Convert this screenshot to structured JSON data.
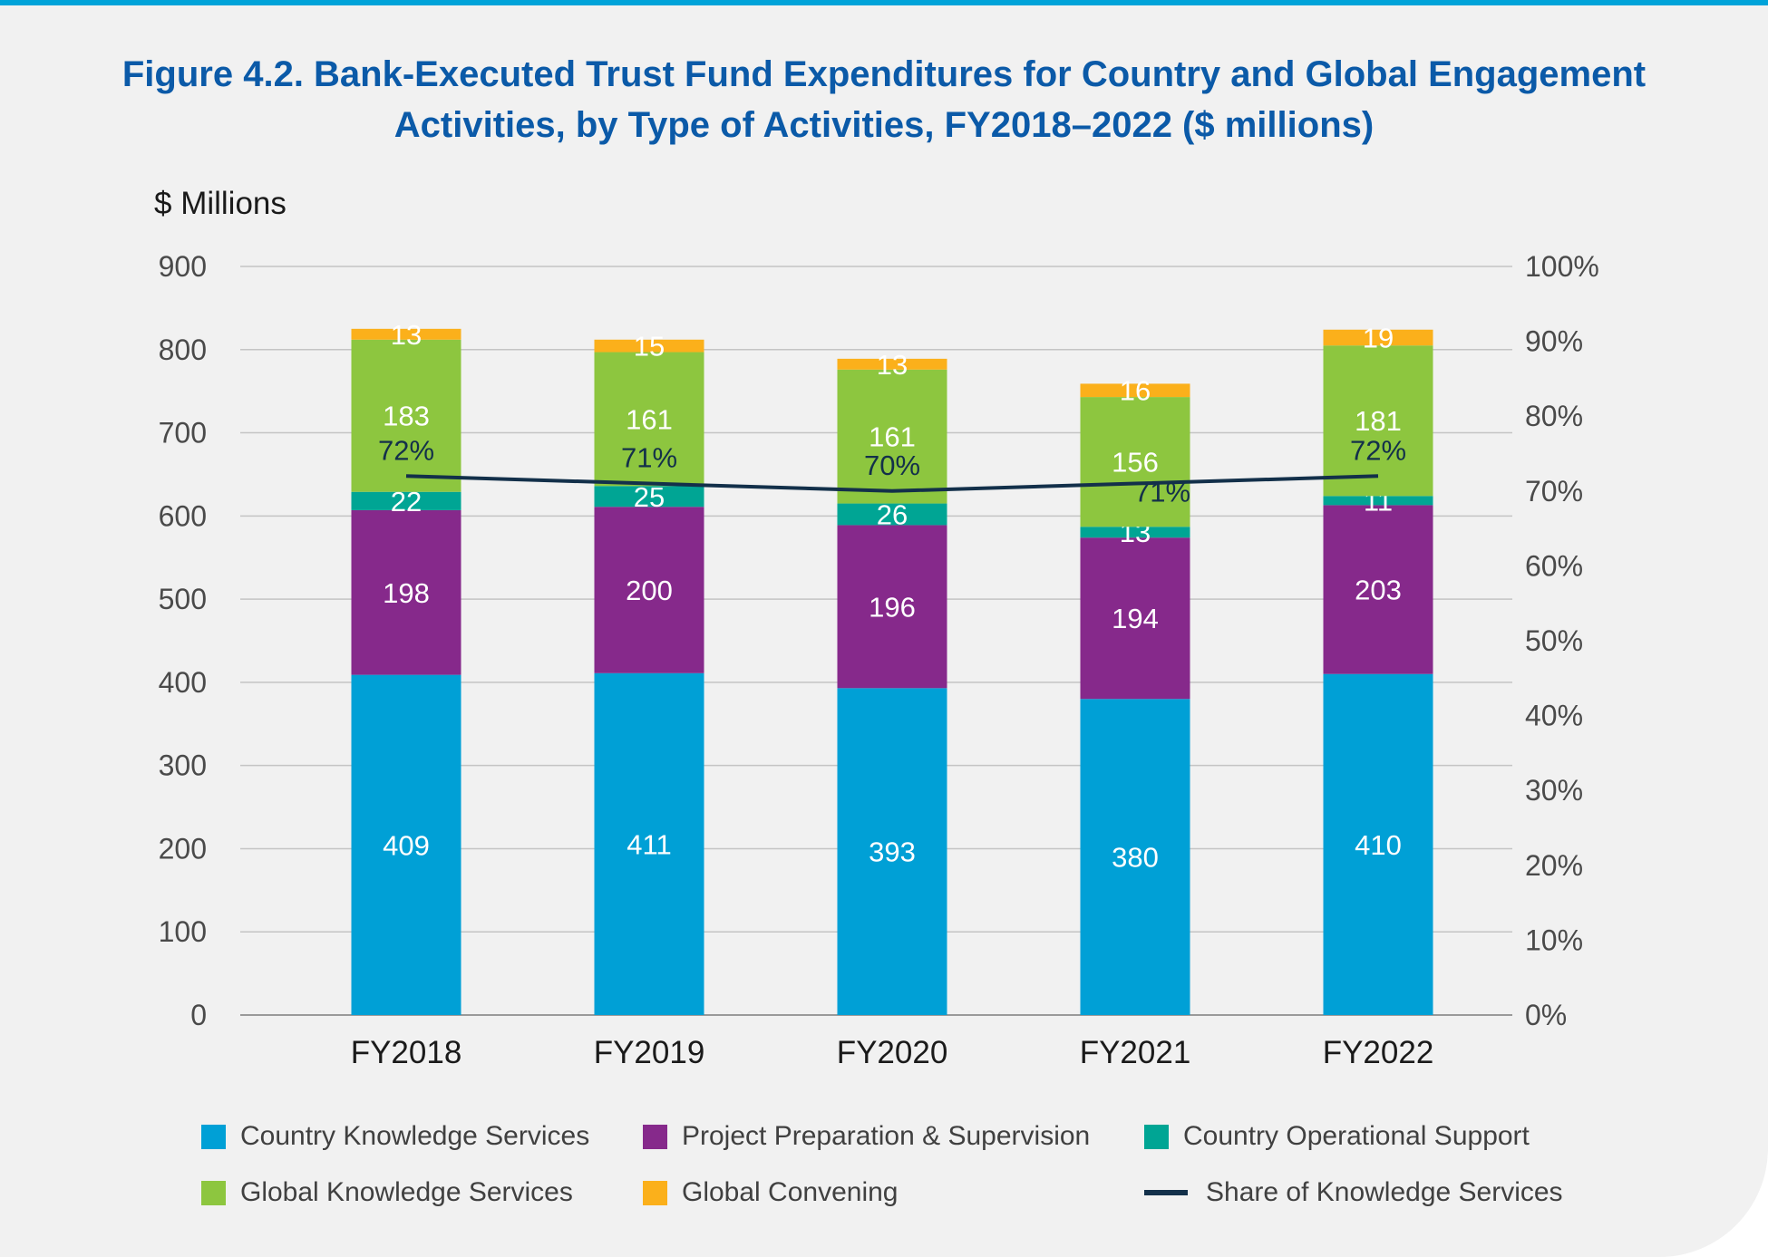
{
  "figure": {
    "title": "Figure 4.2. Bank-Executed Trust Fund Expenditures for Country and Global Engagement Activities, by Type of Activities, FY2018–2022 ($ millions)"
  },
  "colors": {
    "background": "#f1f1f1",
    "title": "#0b5aa8",
    "top_rule": "#00a3d9",
    "Country Knowledge Services": "#00a0d6",
    "Project Preparation & Supervision": "#86298b",
    "Country Operational Support": "#00a594",
    "Global Knowledge Services": "#8dc63f",
    "Global Convening": "#fbb01b",
    "Share of Knowledge Services": "#13304a"
  },
  "chart_data": {
    "type": "bar",
    "stacked": true,
    "categories": [
      "FY2018",
      "FY2019",
      "FY2020",
      "FY2021",
      "FY2022"
    ],
    "ylabel": "$ Millions",
    "ylim": [
      0,
      900
    ],
    "y_ticks": [
      "0",
      "100",
      "200",
      "300",
      "400",
      "500",
      "600",
      "700",
      "800",
      "900"
    ],
    "y2lim": [
      0,
      100
    ],
    "y2_ticks": [
      "0%",
      "10%",
      "20%",
      "30%",
      "40%",
      "50%",
      "60%",
      "70%",
      "80%",
      "90%",
      "100%"
    ],
    "grid": true,
    "series": [
      {
        "name": "Country Knowledge Services",
        "values": [
          409,
          411,
          393,
          380,
          410
        ]
      },
      {
        "name": "Project Preparation & Supervision",
        "values": [
          198,
          200,
          196,
          194,
          203
        ]
      },
      {
        "name": "Country Operational Support",
        "values": [
          22,
          25,
          26,
          13,
          11
        ]
      },
      {
        "name": "Global Knowledge Services",
        "values": [
          183,
          161,
          161,
          156,
          181
        ]
      },
      {
        "name": "Global Convening",
        "values": [
          13,
          15,
          13,
          16,
          19
        ]
      }
    ],
    "line_series": {
      "name": "Share of Knowledge Services",
      "axis": "right",
      "values": [
        72,
        71,
        70,
        71,
        72
      ],
      "labels": [
        "72%",
        "71%",
        "70%",
        "71%",
        "72%"
      ]
    },
    "legend_position": "bottom"
  }
}
